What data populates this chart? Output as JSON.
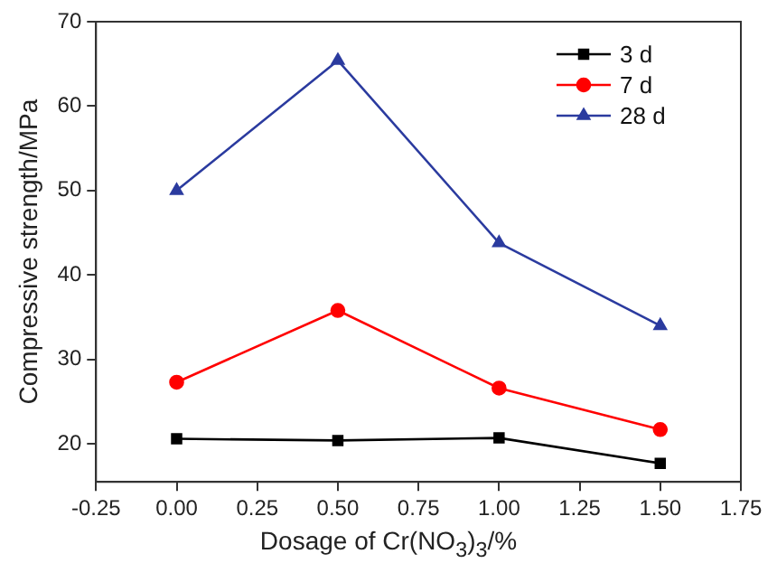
{
  "chart_data": {
    "type": "line",
    "xlabel": "Dosage of Cr(NO$_{3}$)$_{3}$/%",
    "ylabel": "Compressive strength/MPa",
    "x": [
      0,
      0.5,
      1,
      1.5
    ],
    "series": [
      {
        "name": "3 d",
        "color": "#000000",
        "marker": "square",
        "values": [
          20.6,
          20.4,
          20.7,
          17.7
        ]
      },
      {
        "name": "7 d",
        "color": "#ff0000",
        "marker": "circle",
        "values": [
          27.3,
          35.8,
          26.6,
          21.7
        ]
      },
      {
        "name": "28 d",
        "color": "#2b3b9f",
        "marker": "triangle",
        "values": [
          50,
          65.4,
          43.8,
          34
        ]
      }
    ],
    "xlim": [
      -0.25,
      1.75
    ],
    "xticks": [
      {
        "value": -0.25,
        "label": "-0.25"
      },
      {
        "value": 0,
        "label": "0.00"
      },
      {
        "value": 0.25,
        "label": "0.25"
      },
      {
        "value": 0.5,
        "label": "0.50"
      },
      {
        "value": 0.75,
        "label": "0.75"
      },
      {
        "value": 1,
        "label": "1.00"
      },
      {
        "value": 1.25,
        "label": "1.25"
      },
      {
        "value": 1.5,
        "label": "1.50"
      },
      {
        "value": 1.75,
        "label": "1.75"
      }
    ],
    "ylim": [
      15.5,
      70
    ],
    "yticks": [
      20,
      30,
      40,
      50,
      60,
      70
    ],
    "grid": false,
    "legend": "top right",
    "line_style": "solid"
  }
}
